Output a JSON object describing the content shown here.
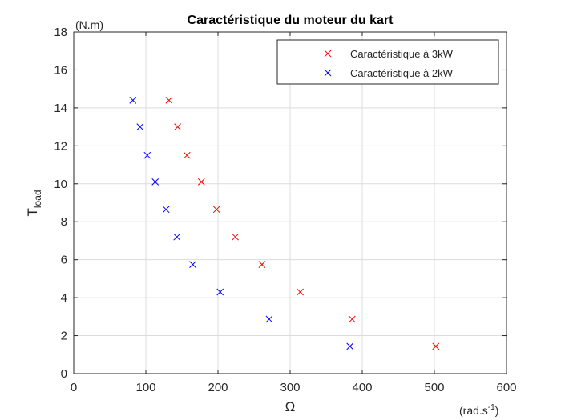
{
  "chart_data": {
    "type": "scatter",
    "title": "Caractéristique du moteur du kart",
    "xlabel": "Ω",
    "xunit_base": "(rad.s",
    "xunit_exp": "-1",
    "xunit_close": ")",
    "ylabel_base": "T",
    "ylabel_sub": "load",
    "yunit": "(N.m)",
    "xlim": [
      0,
      600
    ],
    "ylim": [
      0,
      18
    ],
    "xticks": [
      0,
      100,
      200,
      300,
      400,
      500,
      600
    ],
    "yticks": [
      0,
      2,
      4,
      6,
      8,
      10,
      12,
      14,
      16,
      18
    ],
    "grid": true,
    "legend_position": "top-right",
    "series": [
      {
        "name": "Caractéristique à 3kW",
        "color": "#ff0000",
        "marker": "x",
        "points": [
          [
            132,
            14.4
          ],
          [
            144,
            13.0
          ],
          [
            157,
            11.5
          ],
          [
            177,
            10.1
          ],
          [
            198,
            8.65
          ],
          [
            224,
            7.2
          ],
          [
            261,
            5.75
          ],
          [
            314,
            4.3
          ],
          [
            386,
            2.87
          ],
          [
            502,
            1.44
          ]
        ]
      },
      {
        "name": "Caractéristique à 2kW",
        "color": "#0000ff",
        "marker": "x",
        "points": [
          [
            82,
            14.4
          ],
          [
            92,
            13.0
          ],
          [
            102,
            11.5
          ],
          [
            113,
            10.1
          ],
          [
            128,
            8.65
          ],
          [
            143,
            7.2
          ],
          [
            165,
            5.75
          ],
          [
            203,
            4.3
          ],
          [
            271,
            2.87
          ],
          [
            383,
            1.44
          ]
        ]
      }
    ]
  }
}
